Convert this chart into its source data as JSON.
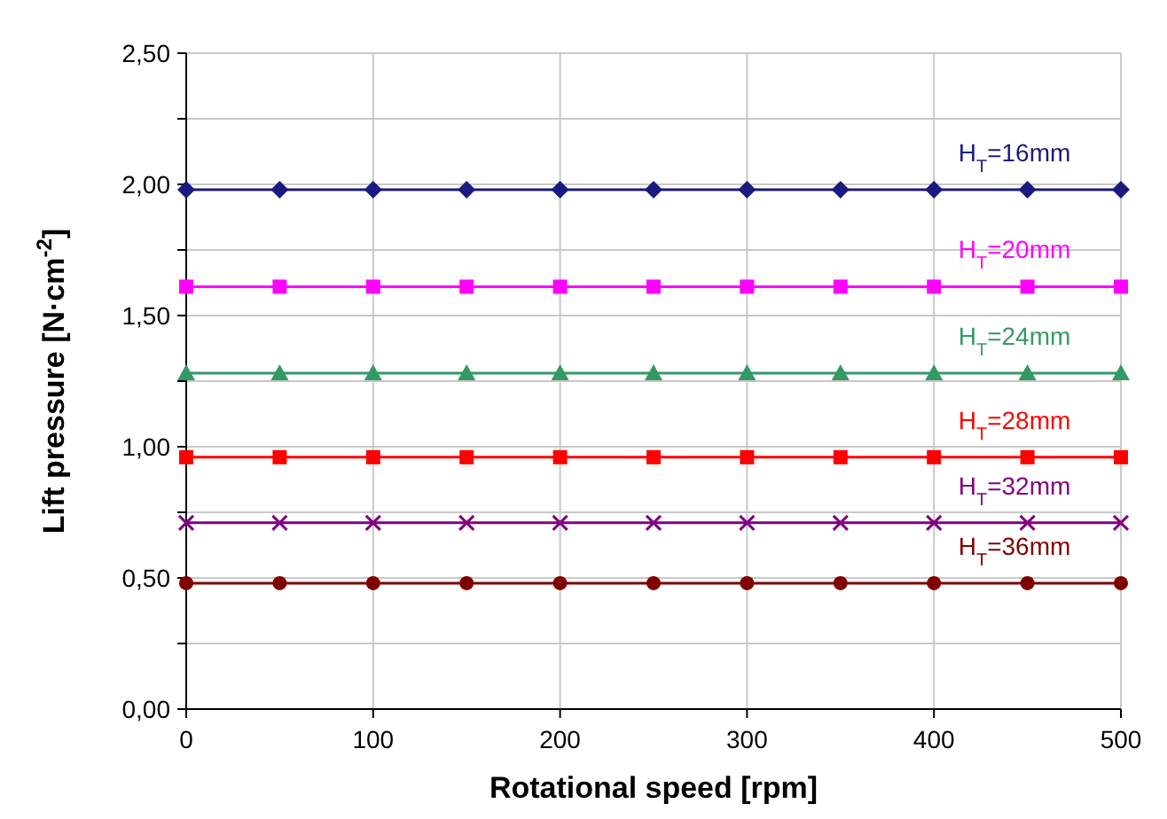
{
  "chart_data": {
    "type": "line",
    "xlabel": "Rotational speed [rpm]",
    "ylabel": "Lift pressure [N·cm$^{-2}$]",
    "x": [
      0,
      50,
      100,
      150,
      200,
      250,
      300,
      350,
      400,
      450,
      500
    ],
    "xlim": [
      0,
      500
    ],
    "xticks": [
      0,
      100,
      200,
      300,
      400,
      500
    ],
    "ylim": [
      0,
      2.5
    ],
    "yticks": [
      {
        "value": 0,
        "label": "0,00"
      },
      {
        "value": 0.25,
        "label": null
      },
      {
        "value": 0.5,
        "label": "0,50"
      },
      {
        "value": 0.75,
        "label": null
      },
      {
        "value": 1,
        "label": "1,00"
      },
      {
        "value": 1.25,
        "label": null
      },
      {
        "value": 1.5,
        "label": "1,50"
      },
      {
        "value": 1.75,
        "label": null
      },
      {
        "value": 2,
        "label": "2,00"
      },
      {
        "value": 2.25,
        "label": null
      },
      {
        "value": 2.5,
        "label": "2,50"
      }
    ],
    "grid": true,
    "legend": false,
    "series": [
      {
        "name": "H$_{T}$=16mm",
        "color": "#1a1a80",
        "marker": "diamond",
        "values": [
          1.98,
          1.98,
          1.98,
          1.98,
          1.98,
          1.98,
          1.98,
          1.98,
          1.98,
          1.98,
          1.98
        ]
      },
      {
        "name": "H$_{T}$=20mm",
        "color": "#ff00ff",
        "marker": "square",
        "values": [
          1.61,
          1.61,
          1.61,
          1.61,
          1.61,
          1.61,
          1.61,
          1.61,
          1.61,
          1.61,
          1.61
        ]
      },
      {
        "name": "H$_{T}$=24mm",
        "color": "#339966",
        "marker": "triangle",
        "values": [
          1.28,
          1.28,
          1.28,
          1.28,
          1.28,
          1.28,
          1.28,
          1.28,
          1.28,
          1.28,
          1.28
        ]
      },
      {
        "name": "H$_{T}$=28mm",
        "color": "#ff0000",
        "marker": "square",
        "values": [
          0.96,
          0.96,
          0.96,
          0.96,
          0.96,
          0.96,
          0.96,
          0.96,
          0.96,
          0.96,
          0.96
        ]
      },
      {
        "name": "H$_{T}$=32mm",
        "color": "#800080",
        "marker": "cross",
        "values": [
          0.71,
          0.71,
          0.71,
          0.71,
          0.71,
          0.71,
          0.71,
          0.71,
          0.71,
          0.71,
          0.71
        ]
      },
      {
        "name": "H$_{T}$=36mm",
        "color": "#800000",
        "marker": "circle",
        "values": [
          0.48,
          0.48,
          0.48,
          0.48,
          0.48,
          0.48,
          0.48,
          0.48,
          0.48,
          0.48,
          0.48
        ]
      }
    ]
  }
}
